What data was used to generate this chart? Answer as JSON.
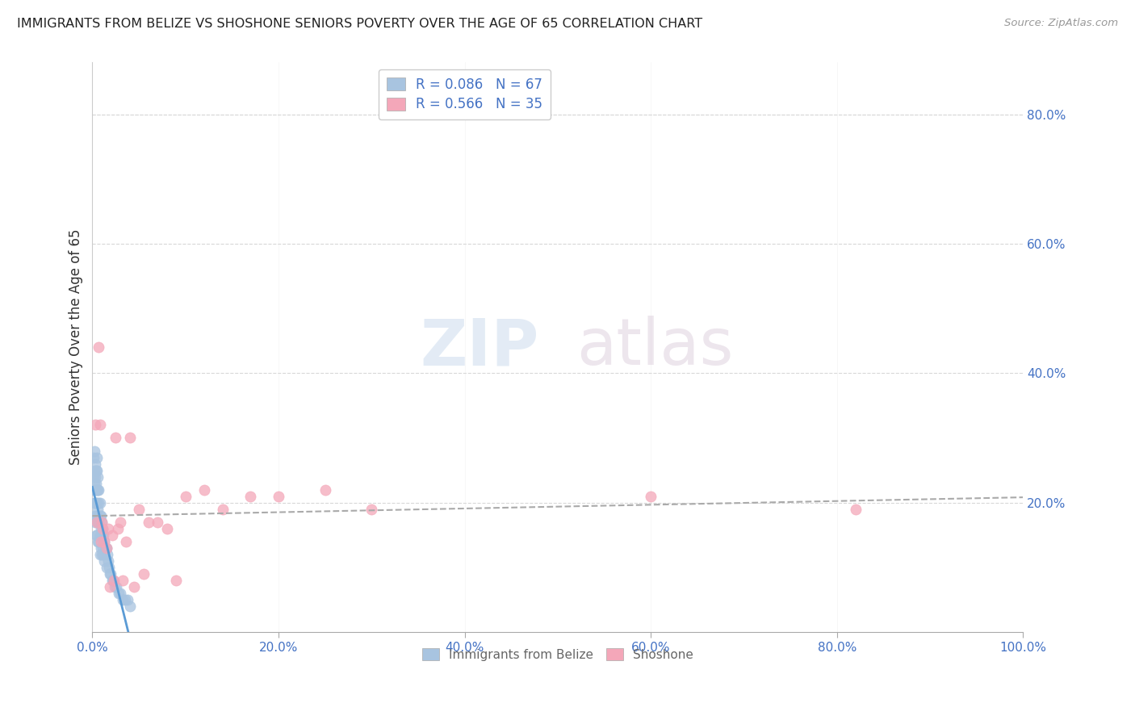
{
  "title": "IMMIGRANTS FROM BELIZE VS SHOSHONE SENIORS POVERTY OVER THE AGE OF 65 CORRELATION CHART",
  "source": "Source: ZipAtlas.com",
  "ylabel": "Seniors Poverty Over the Age of 65",
  "xlim": [
    0,
    1.0
  ],
  "ylim": [
    0,
    0.88
  ],
  "xticks": [
    0.0,
    0.2,
    0.4,
    0.6,
    0.8,
    1.0
  ],
  "xtick_labels": [
    "0.0%",
    "20.0%",
    "40.0%",
    "60.0%",
    "80.0%",
    "100.0%"
  ],
  "ytick_right": [
    0.0,
    0.2,
    0.4,
    0.6,
    0.8
  ],
  "ytick_right_labels": [
    "",
    "20.0%",
    "40.0%",
    "60.0%",
    "80.0%"
  ],
  "belize_color": "#a8c4e0",
  "shoshone_color": "#f4a7b9",
  "belize_R": 0.086,
  "belize_N": 67,
  "shoshone_R": 0.566,
  "shoshone_N": 35,
  "belize_line_color": "#5b9bd5",
  "shoshone_line_color": "#e06080",
  "watermark_part1": "ZIP",
  "watermark_part2": "atlas",
  "legend_belize_label": "Immigrants from Belize",
  "legend_shoshone_label": "Shoshone",
  "belize_x": [
    0.001,
    0.001,
    0.001,
    0.002,
    0.002,
    0.002,
    0.002,
    0.002,
    0.003,
    0.003,
    0.003,
    0.003,
    0.003,
    0.004,
    0.004,
    0.004,
    0.004,
    0.004,
    0.005,
    0.005,
    0.005,
    0.005,
    0.005,
    0.005,
    0.006,
    0.006,
    0.006,
    0.006,
    0.006,
    0.007,
    0.007,
    0.007,
    0.007,
    0.008,
    0.008,
    0.008,
    0.008,
    0.009,
    0.009,
    0.009,
    0.01,
    0.01,
    0.01,
    0.011,
    0.011,
    0.012,
    0.012,
    0.013,
    0.013,
    0.014,
    0.015,
    0.015,
    0.016,
    0.017,
    0.018,
    0.019,
    0.02,
    0.021,
    0.022,
    0.024,
    0.026,
    0.028,
    0.03,
    0.033,
    0.035,
    0.038,
    0.04
  ],
  "belize_y": [
    0.27,
    0.24,
    0.22,
    0.28,
    0.25,
    0.23,
    0.2,
    0.18,
    0.26,
    0.24,
    0.22,
    0.2,
    0.17,
    0.25,
    0.23,
    0.2,
    0.18,
    0.15,
    0.27,
    0.25,
    0.22,
    0.2,
    0.18,
    0.15,
    0.24,
    0.22,
    0.19,
    0.17,
    0.14,
    0.22,
    0.2,
    0.17,
    0.14,
    0.2,
    0.18,
    0.15,
    0.12,
    0.18,
    0.16,
    0.13,
    0.17,
    0.15,
    0.12,
    0.16,
    0.13,
    0.15,
    0.12,
    0.14,
    0.11,
    0.13,
    0.13,
    0.1,
    0.12,
    0.11,
    0.1,
    0.09,
    0.09,
    0.08,
    0.08,
    0.07,
    0.07,
    0.06,
    0.06,
    0.05,
    0.05,
    0.05,
    0.04
  ],
  "shoshone_x": [
    0.003,
    0.005,
    0.007,
    0.008,
    0.009,
    0.01,
    0.011,
    0.013,
    0.015,
    0.017,
    0.019,
    0.021,
    0.023,
    0.025,
    0.027,
    0.03,
    0.033,
    0.036,
    0.04,
    0.045,
    0.05,
    0.055,
    0.06,
    0.07,
    0.08,
    0.09,
    0.1,
    0.12,
    0.14,
    0.17,
    0.2,
    0.25,
    0.3,
    0.6,
    0.82
  ],
  "shoshone_y": [
    0.32,
    0.17,
    0.44,
    0.32,
    0.14,
    0.17,
    0.16,
    0.14,
    0.13,
    0.16,
    0.07,
    0.15,
    0.08,
    0.3,
    0.16,
    0.17,
    0.08,
    0.14,
    0.3,
    0.07,
    0.19,
    0.09,
    0.17,
    0.17,
    0.16,
    0.08,
    0.21,
    0.22,
    0.19,
    0.21,
    0.21,
    0.22,
    0.19,
    0.21,
    0.19
  ]
}
